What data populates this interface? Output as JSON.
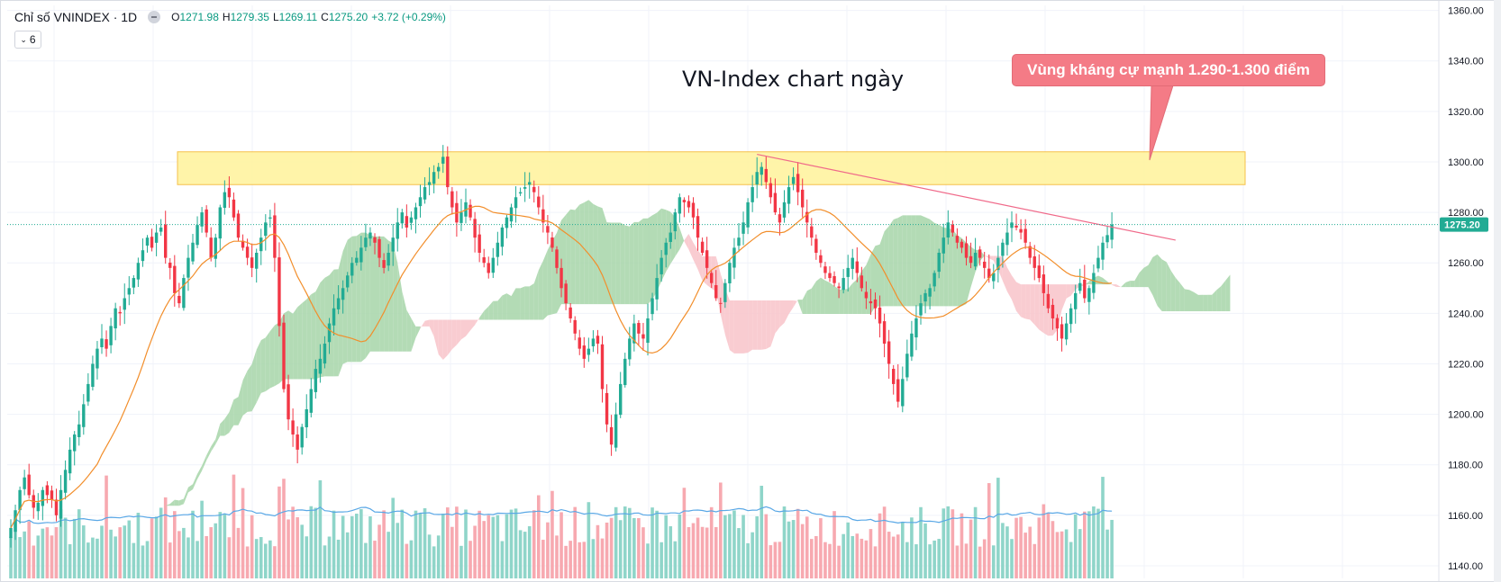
{
  "legend": {
    "symbol": "Chỉ số VNINDEX · 1D",
    "open_label": "O",
    "open": "1271.98",
    "high_label": "H",
    "high": "1279.35",
    "low_label": "L",
    "low": "1269.11",
    "close_label": "C",
    "close": "1275.20",
    "change": "+3.72 (+0.29%)",
    "indicator_count": "6"
  },
  "annotation": {
    "title": "VN-Index chart ngày",
    "callout": "Vùng kháng cự mạnh 1.290-1.300 điểm"
  },
  "price_label": "1275.20",
  "colors": {
    "up": "#22ab94",
    "down": "#f23645",
    "vol_up": "#8fd5c9",
    "vol_down": "#f7a9b0",
    "zone": "#fff29a",
    "zone_border": "#f5c04a",
    "cloud_bull": "#a6d5a8",
    "cloud_bear": "#f8c3c9",
    "ma": "#f28e2b",
    "vol_ma": "#5aa8e6",
    "trend": "#f06a8a"
  },
  "chart_data": {
    "type": "candlestick",
    "title": "VN-Index chart ngày",
    "yaxis_ticks": [
      1140,
      1160,
      1180,
      1200,
      1220,
      1240,
      1260,
      1280,
      1300,
      1320,
      1340,
      1360
    ],
    "ylim": [
      1135,
      1362
    ],
    "last_price": 1275.2,
    "resistance_zone": [
      1291,
      1304
    ],
    "trendline": [
      {
        "bar": 164,
        "price": 1303
      },
      {
        "bar": 256,
        "price": 1269
      }
    ],
    "closes": [
      1155,
      1162,
      1170,
      1175,
      1168,
      1163,
      1165,
      1170,
      1168,
      1166,
      1160,
      1170,
      1178,
      1186,
      1192,
      1196,
      1204,
      1212,
      1220,
      1226,
      1230,
      1226,
      1235,
      1242,
      1240,
      1246,
      1250,
      1254,
      1260,
      1265,
      1270,
      1266,
      1272,
      1274,
      1262,
      1258,
      1248,
      1244,
      1254,
      1262,
      1268,
      1275,
      1280,
      1272,
      1262,
      1270,
      1282,
      1288,
      1286,
      1278,
      1270,
      1266,
      1262,
      1258,
      1264,
      1270,
      1276,
      1278,
      1262,
      1235,
      1210,
      1198,
      1192,
      1186,
      1195,
      1202,
      1210,
      1218,
      1222,
      1228,
      1236,
      1242,
      1246,
      1250,
      1255,
      1260,
      1262,
      1266,
      1270,
      1272,
      1268,
      1262,
      1258,
      1264,
      1270,
      1276,
      1280,
      1274,
      1278,
      1282,
      1286,
      1290,
      1292,
      1296,
      1298,
      1302,
      1290,
      1282,
      1276,
      1280,
      1284,
      1278,
      1270,
      1264,
      1260,
      1256,
      1262,
      1268,
      1274,
      1278,
      1282,
      1286,
      1288,
      1290,
      1292,
      1288,
      1282,
      1276,
      1272,
      1266,
      1258,
      1250,
      1244,
      1238,
      1232,
      1226,
      1222,
      1226,
      1230,
      1228,
      1210,
      1196,
      1188,
      1200,
      1212,
      1222,
      1230,
      1236,
      1232,
      1230,
      1238,
      1246,
      1254,
      1262,
      1268,
      1272,
      1280,
      1286,
      1284,
      1282,
      1278,
      1270,
      1264,
      1258,
      1252,
      1246,
      1244,
      1252,
      1260,
      1266,
      1270,
      1276,
      1284,
      1290,
      1296,
      1298,
      1292,
      1286,
      1280,
      1276,
      1284,
      1290,
      1294,
      1288,
      1282,
      1276,
      1270,
      1264,
      1260,
      1256,
      1254,
      1252,
      1250,
      1254,
      1258,
      1262,
      1256,
      1250,
      1246,
      1244,
      1242,
      1236,
      1228,
      1220,
      1212,
      1205,
      1214,
      1224,
      1232,
      1238,
      1244,
      1248,
      1250,
      1256,
      1264,
      1270,
      1276,
      1272,
      1268,
      1266,
      1262,
      1260,
      1264,
      1262,
      1258,
      1254,
      1256,
      1262,
      1268,
      1272,
      1276,
      1274,
      1272,
      1268,
      1262,
      1258,
      1254,
      1248,
      1242,
      1238,
      1234,
      1230,
      1236,
      1242,
      1248,
      1252,
      1246,
      1250,
      1256,
      1262,
      1268,
      1271,
      1275.2
    ]
  }
}
